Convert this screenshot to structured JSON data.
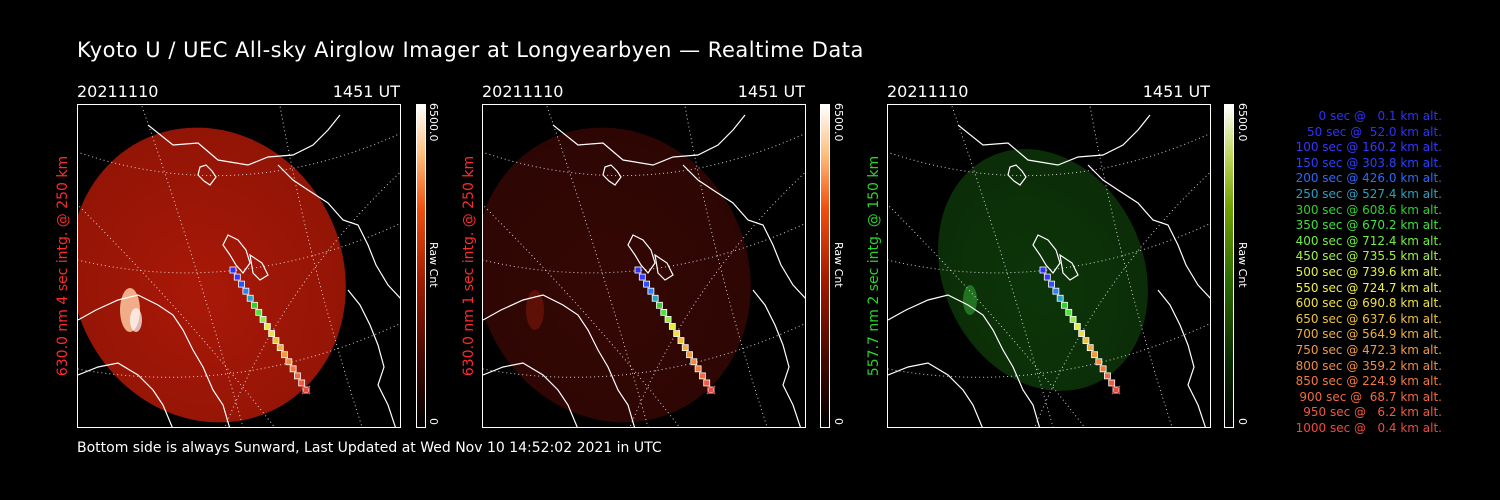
{
  "header": {
    "title": "Kyoto U / UEC All-sky Airglow Imager at Longyearbyen — Realtime Data"
  },
  "footer": {
    "text": "Bottom side is always Sunward, Last Updated at Wed Nov 10 14:52:02 2021 in UTC"
  },
  "panels": [
    {
      "date": "20211110",
      "time": "1451 UT",
      "ylabel": "630.0 nm 4 sec intg. @ 250 km",
      "label_color": "#ff2a2a",
      "colorbar_max": "6500.0",
      "colorbar_min": "0",
      "colorbar_unit": "Raw Cnt",
      "colorbar_hue": "red",
      "glow_color": "#b81a08",
      "glow_intensity": 0.92
    },
    {
      "date": "20211110",
      "time": "1451 UT",
      "ylabel": "630.0 nm 1 sec intg. @ 250 km",
      "label_color": "#ff2a2a",
      "colorbar_max": "6500.0",
      "colorbar_min": "0",
      "colorbar_unit": "Raw Cnt",
      "colorbar_hue": "red",
      "glow_color": "#3a0804",
      "glow_intensity": 0.9
    },
    {
      "date": "20211110",
      "time": "1451 UT",
      "ylabel": "557.7 nm 2 sec intg. @ 150 km",
      "label_color": "#2ad42a",
      "colorbar_max": "6500.0",
      "colorbar_min": "0",
      "colorbar_unit": "Raw Cnt",
      "colorbar_hue": "green",
      "glow_color": "#0e3a0a",
      "glow_intensity": 0.9
    }
  ],
  "legend": [
    {
      "text": "0 sec @   0.1 km alt.",
      "color": "#3030ff"
    },
    {
      "text": "50 sec @  52.0 km alt.",
      "color": "#3030ff"
    },
    {
      "text": "100 sec @ 160.2 km alt.",
      "color": "#3838ff"
    },
    {
      "text": "150 sec @ 303.8 km alt.",
      "color": "#2a40ff"
    },
    {
      "text": "200 sec @ 426.0 km alt.",
      "color": "#2a6aff"
    },
    {
      "text": "250 sec @ 527.4 km alt.",
      "color": "#2aa0c0"
    },
    {
      "text": "300 sec @ 608.6 km alt.",
      "color": "#30d030"
    },
    {
      "text": "350 sec @ 670.2 km alt.",
      "color": "#40e040"
    },
    {
      "text": "400 sec @ 712.4 km alt.",
      "color": "#70f040"
    },
    {
      "text": "450 sec @ 735.5 km alt.",
      "color": "#a0f040"
    },
    {
      "text": "500 sec @ 739.6 km alt.",
      "color": "#e0f040"
    },
    {
      "text": "550 sec @ 724.7 km alt.",
      "color": "#f0f040"
    },
    {
      "text": "600 sec @ 690.8 km alt.",
      "color": "#f0e040"
    },
    {
      "text": "650 sec @ 637.6 km alt.",
      "color": "#f0c040"
    },
    {
      "text": "700 sec @ 564.9 km alt.",
      "color": "#f0b040"
    },
    {
      "text": "750 sec @ 472.3 km alt.",
      "color": "#f09a40"
    },
    {
      "text": "800 sec @ 359.2 km alt.",
      "color": "#f08a40"
    },
    {
      "text": "850 sec @ 224.9 km alt.",
      "color": "#f07a40"
    },
    {
      "text": "900 sec @  68.7 km alt.",
      "color": "#f06a40"
    },
    {
      "text": "950 sec @   6.2 km alt.",
      "color": "#f05a40"
    },
    {
      "text": "1000 sec @   0.4 km alt.",
      "color": "#f04a40"
    }
  ],
  "track_colors": [
    "#3030ff",
    "#3838ff",
    "#2a50ff",
    "#2a80ff",
    "#2aa0c0",
    "#30d030",
    "#50e040",
    "#90f040",
    "#e0f040",
    "#f0e040",
    "#f0c040",
    "#f0b040",
    "#f09a40",
    "#f08a40",
    "#f07a40",
    "#f06a40",
    "#f05a40",
    "#f04a40"
  ]
}
